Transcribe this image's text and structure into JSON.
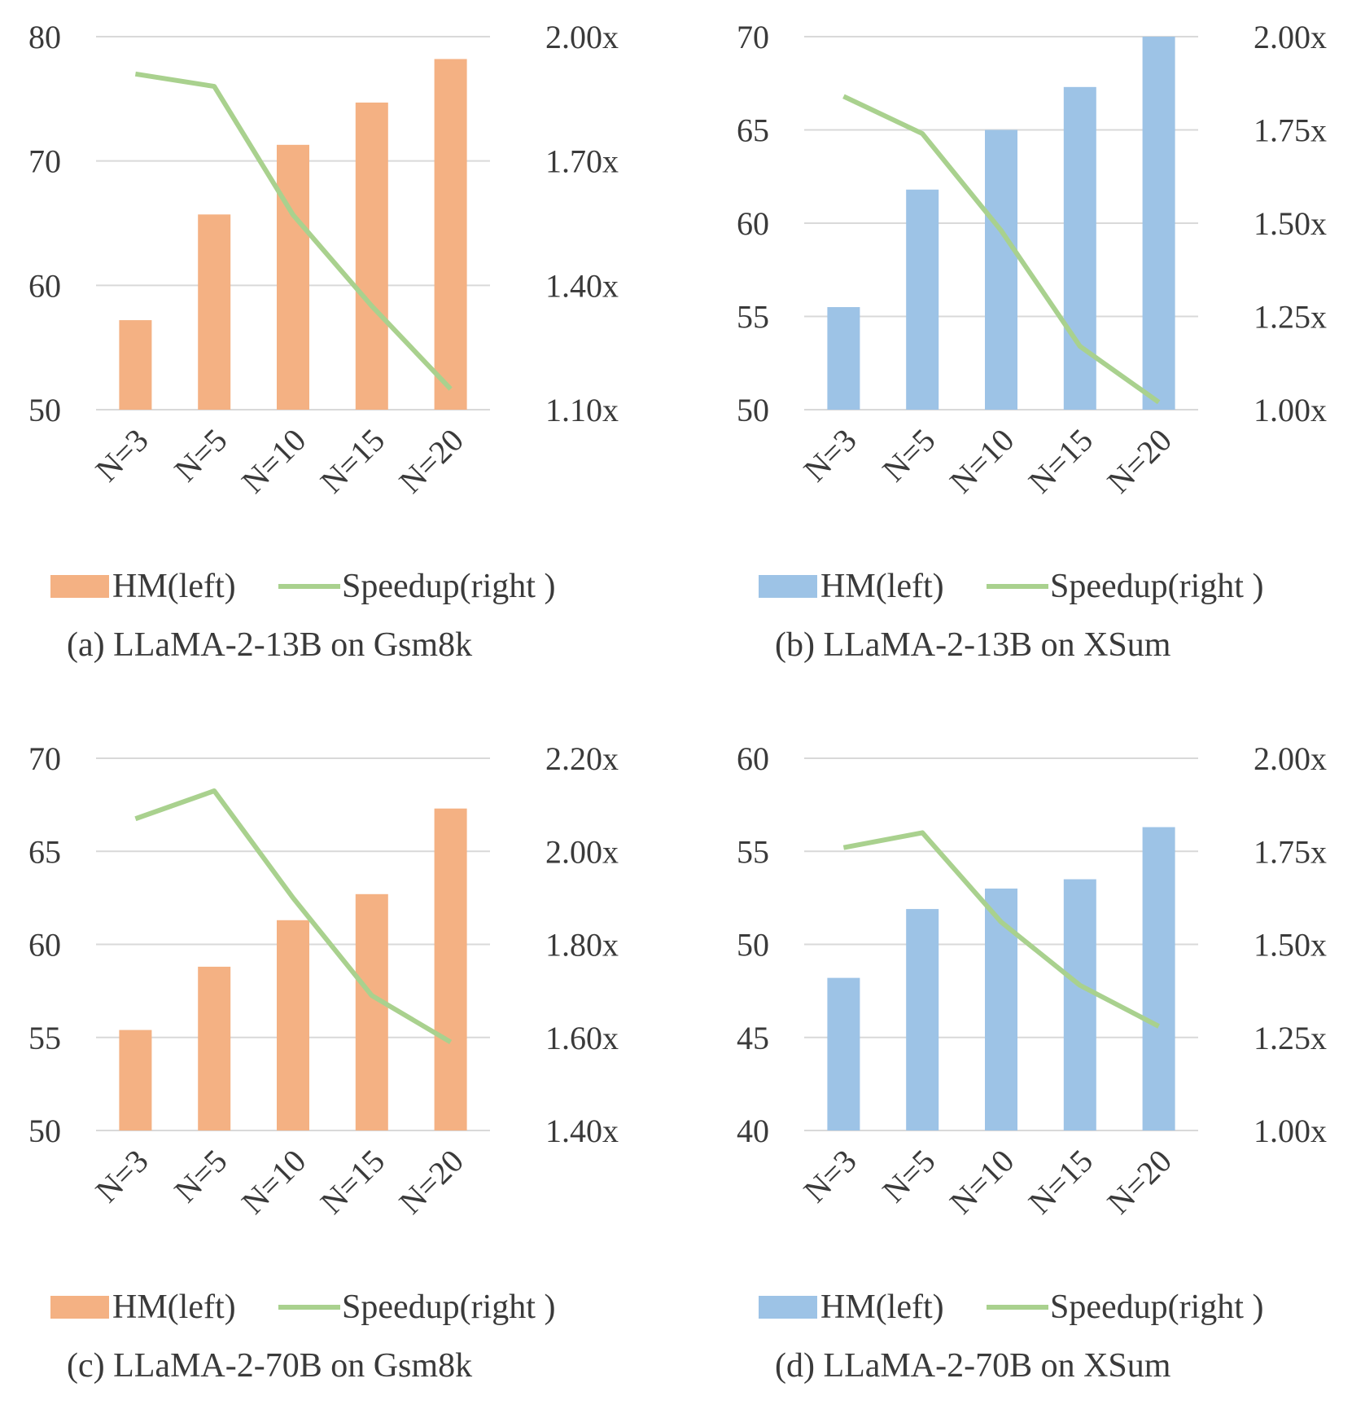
{
  "colors": {
    "orange": "#f4b183",
    "blue": "#9dc3e6",
    "green": "#a9d18e",
    "grid": "#d9d9d9",
    "text": "#3a3a3a"
  },
  "chart_data": [
    {
      "type": "bar",
      "caption": "(a) LLaMA-2-13B on Gsm8k",
      "categories": [
        "N=3",
        "N=5",
        "N=10",
        "N=15",
        "N=20"
      ],
      "bar_color": "orange",
      "series": [
        {
          "name": "HM(left)",
          "type": "bar",
          "axis": "left",
          "values": [
            57.2,
            65.7,
            71.3,
            74.7,
            78.2
          ]
        },
        {
          "name": "Speedup(right )",
          "type": "line",
          "axis": "right",
          "values": [
            1.91,
            1.88,
            1.57,
            1.35,
            1.15
          ]
        }
      ],
      "left_axis": {
        "min": 50,
        "max": 80,
        "ticks": [
          "50",
          "60",
          "70",
          "80"
        ]
      },
      "right_axis": {
        "min": 1.1,
        "max": 2.0,
        "ticks": [
          "1.10x",
          "1.40x",
          "1.70x",
          "2.00x"
        ]
      },
      "grid": true,
      "legend": "bottom"
    },
    {
      "type": "bar",
      "caption": "(b) LLaMA-2-13B on XSum",
      "categories": [
        "N=3",
        "N=5",
        "N=10",
        "N=15",
        "N=20"
      ],
      "bar_color": "blue",
      "series": [
        {
          "name": "HM(left)",
          "type": "bar",
          "axis": "left",
          "values": [
            55.5,
            61.8,
            65.0,
            67.3,
            70.0
          ]
        },
        {
          "name": "Speedup(right )",
          "type": "line",
          "axis": "right",
          "values": [
            1.84,
            1.74,
            1.48,
            1.17,
            1.02
          ]
        }
      ],
      "left_axis": {
        "min": 50,
        "max": 70,
        "ticks": [
          "50",
          "55",
          "60",
          "65",
          "70"
        ]
      },
      "right_axis": {
        "min": 1.0,
        "max": 2.0,
        "ticks": [
          "1.00x",
          "1.25x",
          "1.50x",
          "1.75x",
          "2.00x"
        ]
      },
      "grid": true,
      "legend": "bottom"
    },
    {
      "type": "bar",
      "caption": "(c) LLaMA-2-70B on Gsm8k",
      "categories": [
        "N=3",
        "N=5",
        "N=10",
        "N=15",
        "N=20"
      ],
      "bar_color": "orange",
      "series": [
        {
          "name": "HM(left)",
          "type": "bar",
          "axis": "left",
          "values": [
            55.4,
            58.8,
            61.3,
            62.7,
            67.3
          ]
        },
        {
          "name": "Speedup(right )",
          "type": "line",
          "axis": "right",
          "values": [
            2.07,
            2.13,
            1.9,
            1.69,
            1.59
          ]
        }
      ],
      "left_axis": {
        "min": 50,
        "max": 70,
        "ticks": [
          "50",
          "55",
          "60",
          "65",
          "70"
        ]
      },
      "right_axis": {
        "min": 1.4,
        "max": 2.2,
        "ticks": [
          "1.40x",
          "1.60x",
          "1.80x",
          "2.00x",
          "2.20x"
        ]
      },
      "grid": true,
      "legend": "bottom"
    },
    {
      "type": "bar",
      "caption": "(d) LLaMA-2-70B on XSum",
      "categories": [
        "N=3",
        "N=5",
        "N=10",
        "N=15",
        "N=20"
      ],
      "bar_color": "blue",
      "series": [
        {
          "name": "HM(left)",
          "type": "bar",
          "axis": "left",
          "values": [
            48.2,
            51.9,
            53.0,
            53.5,
            56.3
          ]
        },
        {
          "name": "Speedup(right )",
          "type": "line",
          "axis": "right",
          "values": [
            1.76,
            1.8,
            1.56,
            1.39,
            1.28
          ]
        }
      ],
      "left_axis": {
        "min": 40,
        "max": 60,
        "ticks": [
          "40",
          "45",
          "50",
          "55",
          "60"
        ]
      },
      "right_axis": {
        "min": 1.0,
        "max": 2.0,
        "ticks": [
          "1.00x",
          "1.25x",
          "1.50x",
          "1.75x",
          "2.00x"
        ]
      },
      "grid": true,
      "legend": "bottom"
    }
  ]
}
